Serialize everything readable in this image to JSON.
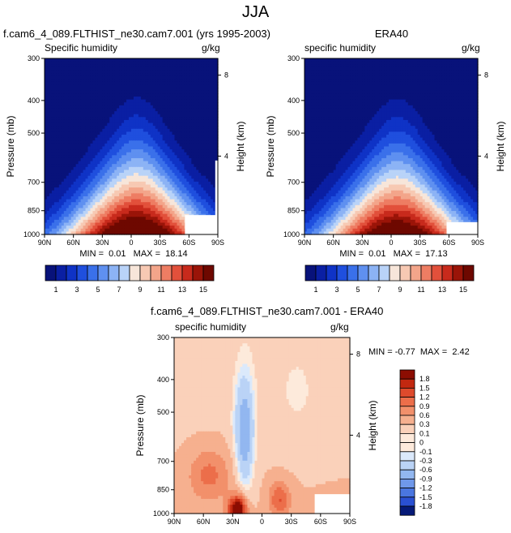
{
  "page_title": "JJA",
  "chart_data": [
    {
      "type": "heatmap",
      "title": "f.cam6_4_089.FLTHIST_ne30.cam7.001 (yrs 1995-2003)",
      "left_label": "Specific humidity",
      "right_label": "g/kg",
      "xlabel": "",
      "ylabel": "Pressure (mb)",
      "ylabel_right": "Height (km)",
      "x_ticks": [
        "90N",
        "60N",
        "30N",
        "0",
        "30S",
        "60S",
        "90S"
      ],
      "y_ticks": [
        "300",
        "400",
        "500",
        "700",
        "850",
        "1000"
      ],
      "height_ticks": [
        "8",
        "4"
      ],
      "stats": "MIN =  0.01   MAX =  18.14",
      "colorbar_labels": [
        "1",
        "3",
        "5",
        "7",
        "9",
        "11",
        "13",
        "15"
      ]
    },
    {
      "type": "heatmap",
      "title": "ERA40",
      "left_label": "specific humidity",
      "right_label": "g/kg",
      "xlabel": "",
      "ylabel": "Pressure (mb)",
      "ylabel_right": "Height (km)",
      "x_ticks": [
        "90N",
        "60N",
        "30N",
        "0",
        "30S",
        "60S",
        "90S"
      ],
      "y_ticks": [
        "300",
        "400",
        "500",
        "700",
        "850",
        "1000"
      ],
      "height_ticks": [
        "8",
        "4"
      ],
      "stats": "MIN =  0.01   MAX =  17.13",
      "colorbar_labels": [
        "1",
        "3",
        "5",
        "7",
        "9",
        "11",
        "13",
        "15"
      ]
    },
    {
      "type": "heatmap",
      "title": "f.cam6_4_089.FLTHIST_ne30.cam7.001 - ERA40",
      "left_label": "specific humidity",
      "right_label": "g/kg",
      "xlabel": "",
      "ylabel": "Pressure (mb)",
      "ylabel_right": "Height (km)",
      "x_ticks": [
        "90N",
        "60N",
        "30N",
        "0",
        "30S",
        "60S",
        "90S"
      ],
      "y_ticks": [
        "300",
        "400",
        "500",
        "700",
        "850",
        "1000"
      ],
      "height_ticks": [
        "8",
        "4"
      ],
      "stats": "MIN = -0.77  MAX =  2.42",
      "colorbar_labels": [
        "1.8",
        "1.5",
        "1.2",
        "0.9",
        "0.6",
        "0.3",
        "0.1",
        "0",
        "-0.1",
        "-0.3",
        "-0.6",
        "-0.9",
        "-1.2",
        "-1.5",
        "-1.8"
      ]
    }
  ],
  "colors": {
    "seq": [
      "#08127a",
      "#0a1fa3",
      "#0f33c6",
      "#1f4fde",
      "#3a70ea",
      "#5f90f0",
      "#8cb3f5",
      "#b9d3f8",
      "#f7e6da",
      "#f7c9b3",
      "#f3a58a",
      "#ee7d63",
      "#e2503b",
      "#c82a1c",
      "#9a1408",
      "#6e0800"
    ],
    "div": [
      "#fdeadb",
      "#fad1ba",
      "#f6b08f",
      "#f2906b",
      "#ec6e4a",
      "#de4a2c",
      "#c22810",
      "#8c0d02",
      "#dbe9fb",
      "#bad3f6",
      "#92b7f0",
      "#6f98ea",
      "#4a76e0",
      "#2a50d2",
      "#1230b0",
      "#061a78"
    ],
    "div_bar": [
      "#8c0d02",
      "#c22810",
      "#de4a2c",
      "#ec6e4a",
      "#f2906b",
      "#f6b08f",
      "#fad1ba",
      "#fdeadb",
      "#fdeadb",
      "#dbe9fb",
      "#bad3f6",
      "#92b7f0",
      "#6f98ea",
      "#4a76e0",
      "#2a50d2",
      "#061a78"
    ]
  }
}
